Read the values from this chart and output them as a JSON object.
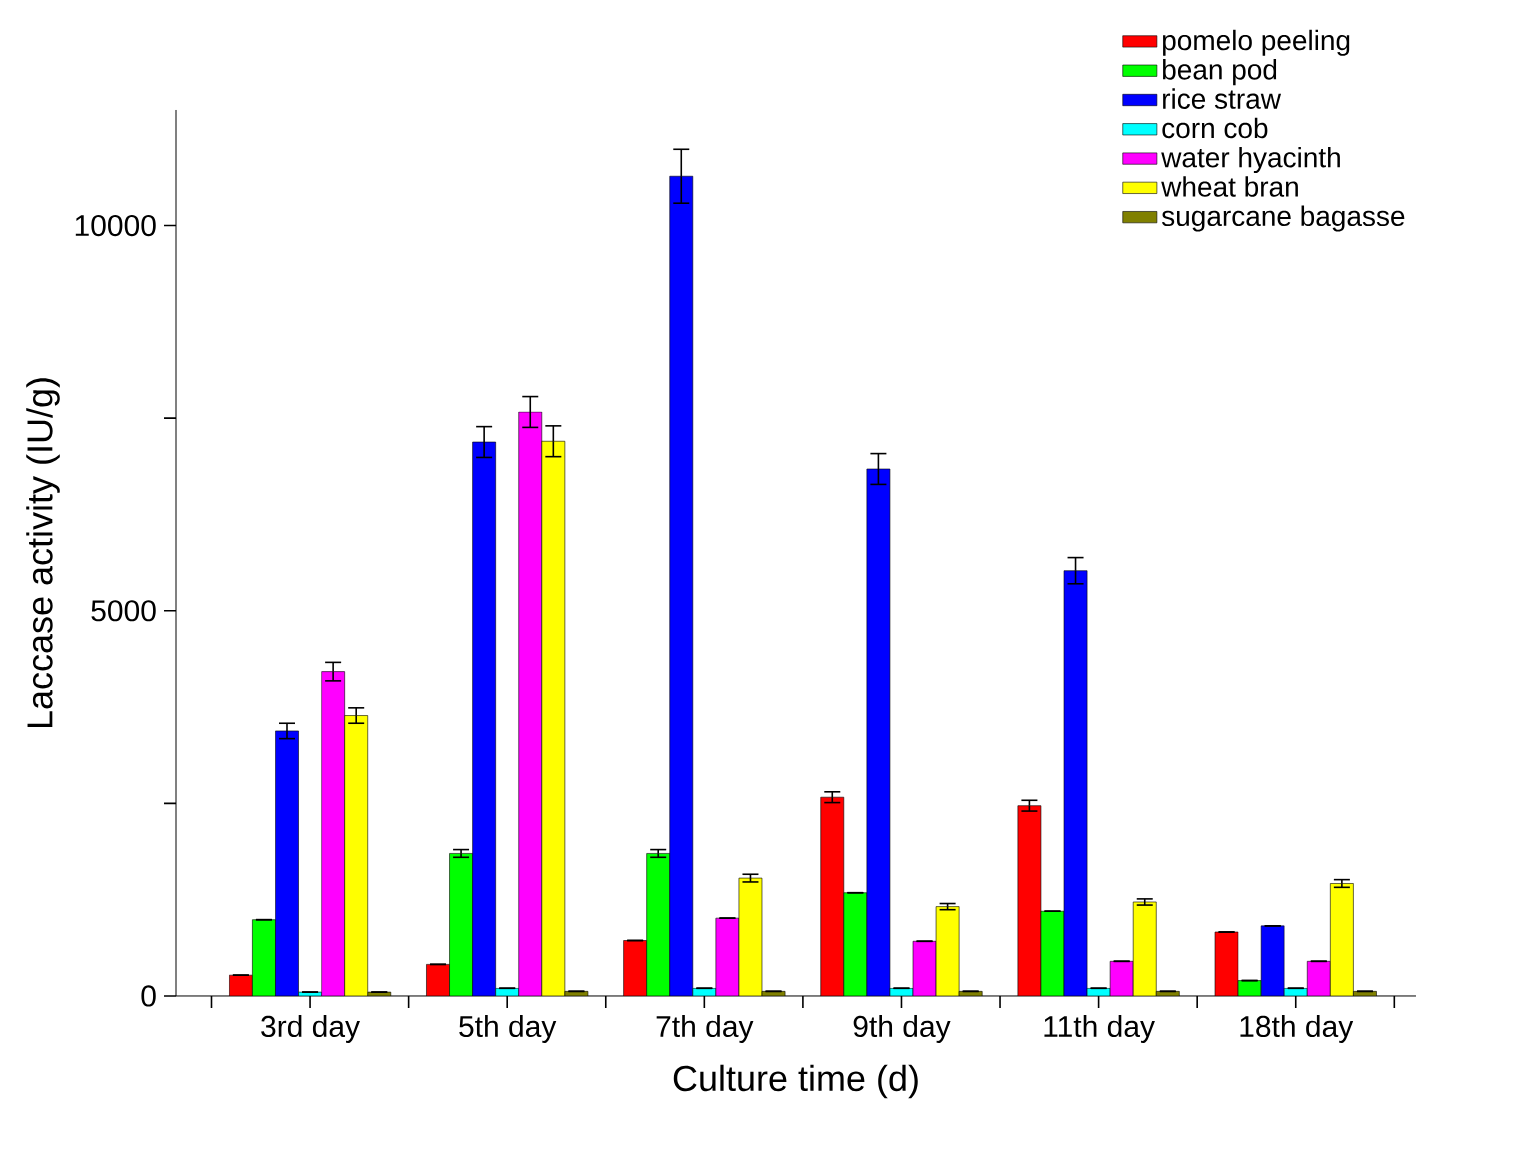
{
  "chart_data": {
    "type": "bar",
    "xlabel": "Culture time (d)",
    "ylabel": "Laccase activity (IU/g)",
    "categories": [
      "3rd day",
      "5th day",
      "7th day",
      "9th day",
      "11th day",
      "18th day"
    ],
    "ylim": [
      0,
      11500
    ],
    "yticks": [
      0,
      {
        "value": 2500,
        "label": null
      },
      5000,
      {
        "value": 7500,
        "label": null
      },
      10000
    ],
    "legend": "top right",
    "series": [
      {
        "name": "pomelo peeling",
        "color": "#ff0000",
        "values": [
          270,
          410,
          720,
          2580,
          2470,
          830
        ],
        "errors": [
          null,
          null,
          null,
          70,
          70,
          null
        ]
      },
      {
        "name": "bean pod",
        "color": "#00ff00",
        "values": [
          990,
          1850,
          1850,
          1340,
          1100,
          200
        ],
        "errors": [
          null,
          50,
          50,
          null,
          null,
          null
        ]
      },
      {
        "name": "rice straw",
        "color": "#0000ff",
        "values": [
          3440,
          7190,
          10640,
          6840,
          5520,
          910
        ],
        "errors": [
          100,
          200,
          350,
          200,
          170,
          null
        ]
      },
      {
        "name": "corn cob",
        "color": "#00ffff",
        "values": [
          50,
          100,
          100,
          100,
          100,
          100
        ],
        "errors": [
          null,
          null,
          null,
          null,
          null,
          null
        ]
      },
      {
        "name": "water hyacinth",
        "color": "#ff00ff",
        "values": [
          4210,
          7580,
          1010,
          710,
          450,
          450
        ],
        "errors": [
          120,
          200,
          null,
          null,
          null,
          null
        ]
      },
      {
        "name": "wheat bran",
        "color": "#ffff00",
        "values": [
          3640,
          7200,
          1530,
          1160,
          1220,
          1460
        ],
        "errors": [
          100,
          200,
          50,
          40,
          40,
          50
        ]
      },
      {
        "name": "sugarcane bagasse",
        "color": "#808000",
        "values": [
          50,
          60,
          60,
          60,
          60,
          60
        ],
        "errors": [
          null,
          null,
          null,
          null,
          null,
          null
        ]
      }
    ]
  }
}
